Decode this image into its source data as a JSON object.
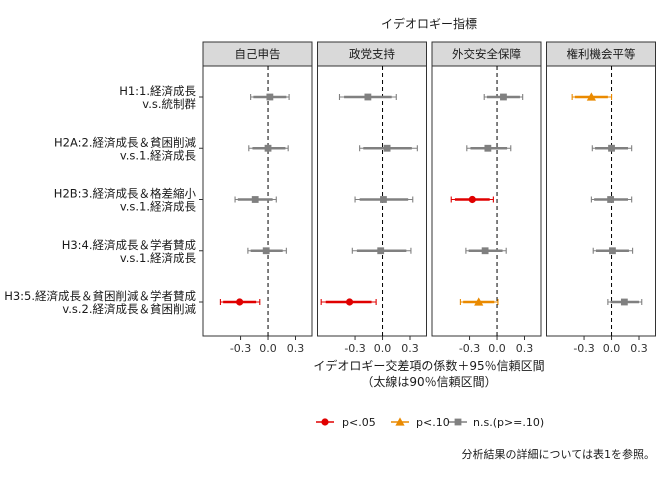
{
  "chart_data": {
    "type": "scatter",
    "title": "イデオロギー指標",
    "xlabel": [
      "イデオロギー交差項の係数＋95％信頼区間",
      "（太線は90％信頼区間）"
    ],
    "ylabel": "",
    "xlim": [
      -0.71,
      0.48
    ],
    "xticks": [
      -0.3,
      0.0,
      0.3
    ],
    "xtick_labels": [
      "-0.3",
      "0.0",
      "0.3"
    ],
    "reference_line": 0,
    "grid": false,
    "rows": [
      {
        "label": [
          "H1:1.経済成長",
          "v.s.統制群"
        ]
      },
      {
        "label": [
          "H2A:2.経済成長＆貧困削減",
          "v.s.1.経済成長"
        ]
      },
      {
        "label": [
          "H2B:3.経済成長＆格差縮小",
          "v.s.1.経済成長"
        ]
      },
      {
        "label": [
          "H3:4.経済成長＆学者賛成",
          "v.s.1.経済成長"
        ]
      },
      {
        "label": [
          "H3:5.経済成長＆貧困削減＆学者賛成",
          "v.s.2.経済成長＆貧困削減"
        ]
      }
    ],
    "panels": [
      {
        "name": "自己申告",
        "points": [
          {
            "est": 0.02,
            "ci95": [
              -0.19,
              0.23
            ],
            "ci90": [
              -0.16,
              0.2
            ],
            "legend_index": 2
          },
          {
            "est": 0.0,
            "ci95": [
              -0.21,
              0.22
            ],
            "ci90": [
              -0.17,
              0.19
            ],
            "legend_index": 2
          },
          {
            "est": -0.14,
            "ci95": [
              -0.36,
              0.09
            ],
            "ci90": [
              -0.33,
              0.05
            ],
            "legend_index": 2
          },
          {
            "est": -0.02,
            "ci95": [
              -0.22,
              0.2
            ],
            "ci90": [
              -0.19,
              0.16
            ],
            "legend_index": 2
          },
          {
            "est": -0.31,
            "ci95": [
              -0.52,
              -0.09
            ],
            "ci90": [
              -0.49,
              -0.13
            ],
            "legend_index": 0
          }
        ]
      },
      {
        "name": "政党支持",
        "points": [
          {
            "est": -0.16,
            "ci95": [
              -0.47,
              0.15
            ],
            "ci90": [
              -0.42,
              0.1
            ],
            "legend_index": 2
          },
          {
            "est": 0.05,
            "ci95": [
              -0.25,
              0.38
            ],
            "ci90": [
              -0.21,
              0.32
            ],
            "legend_index": 2
          },
          {
            "est": 0.01,
            "ci95": [
              -0.3,
              0.33
            ],
            "ci90": [
              -0.25,
              0.28
            ],
            "legend_index": 2
          },
          {
            "est": -0.02,
            "ci95": [
              -0.33,
              0.31
            ],
            "ci90": [
              -0.28,
              0.26
            ],
            "legend_index": 2
          },
          {
            "est": -0.36,
            "ci95": [
              -0.67,
              -0.07
            ],
            "ci90": [
              -0.62,
              -0.12
            ],
            "legend_index": 0
          }
        ]
      },
      {
        "name": "外交安全保障",
        "points": [
          {
            "est": 0.07,
            "ci95": [
              -0.14,
              0.28
            ],
            "ci90": [
              -0.11,
              0.25
            ],
            "legend_index": 2
          },
          {
            "est": -0.1,
            "ci95": [
              -0.33,
              0.15
            ],
            "ci90": [
              -0.29,
              0.11
            ],
            "legend_index": 2
          },
          {
            "est": -0.27,
            "ci95": [
              -0.5,
              -0.04
            ],
            "ci90": [
              -0.46,
              -0.08
            ],
            "legend_index": 0
          },
          {
            "est": -0.13,
            "ci95": [
              -0.34,
              0.1
            ],
            "ci90": [
              -0.31,
              0.06
            ],
            "legend_index": 2
          },
          {
            "est": -0.2,
            "ci95": [
              -0.4,
              0.01
            ],
            "ci90": [
              -0.37,
              -0.03
            ],
            "legend_index": 1
          }
        ]
      },
      {
        "name": "権利機会平等",
        "points": [
          {
            "est": -0.22,
            "ci95": [
              -0.43,
              0.0
            ],
            "ci90": [
              -0.4,
              -0.04
            ],
            "legend_index": 1
          },
          {
            "est": 0.0,
            "ci95": [
              -0.21,
              0.22
            ],
            "ci90": [
              -0.18,
              0.18
            ],
            "legend_index": 2
          },
          {
            "est": -0.01,
            "ci95": [
              -0.22,
              0.22
            ],
            "ci90": [
              -0.19,
              0.18
            ],
            "legend_index": 2
          },
          {
            "est": 0.01,
            "ci95": [
              -0.2,
              0.23
            ],
            "ci90": [
              -0.17,
              0.19
            ],
            "legend_index": 2
          },
          {
            "est": 0.14,
            "ci95": [
              -0.04,
              0.33
            ],
            "ci90": [
              -0.01,
              0.3
            ],
            "legend_index": 2
          }
        ]
      }
    ],
    "legend": {
      "position": "bottom",
      "entries": [
        {
          "label": "p<.05",
          "color": "#e00000",
          "shape": "circle"
        },
        {
          "label": "p<.10",
          "color": "#ea8a00",
          "shape": "triangle"
        },
        {
          "label": "n.s.(p>=.10)",
          "color": "#808080",
          "shape": "square"
        }
      ]
    },
    "note": "分析結果の詳細については表1を参照。"
  }
}
